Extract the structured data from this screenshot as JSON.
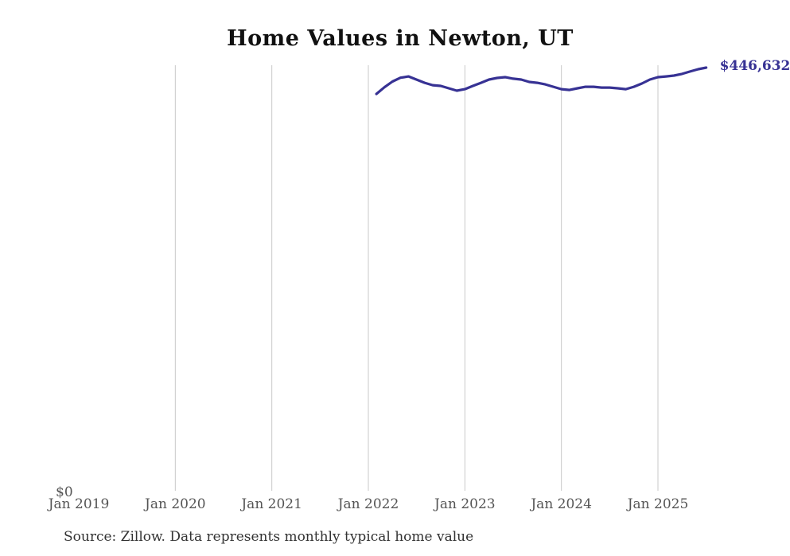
{
  "title": "Home Values in Newton, UT",
  "source_note": "Source: Zillow. Data represents monthly typical home value",
  "y_axis": {
    "zero_label": "$0"
  },
  "end_label": "$446,632",
  "colors": {
    "line": "#373294",
    "gridline": "#c9c9c9",
    "title": "#111111",
    "axis_label": "#555555",
    "source": "#333333",
    "background": "#ffffff"
  },
  "chart_data": {
    "type": "line",
    "title": "Home Values in Newton, UT",
    "xlabel": "",
    "ylabel": "",
    "x_tick_labels": [
      "Jan 2019",
      "Jan 2020",
      "Jan 2021",
      "Jan 2022",
      "Jan 2023",
      "Jan 2024",
      "Jan 2025"
    ],
    "y_tick_labels": [
      "$0"
    ],
    "ylim": [
      0,
      460000
    ],
    "grid": "vertical-only, no gridline at first tick",
    "legend": "none, end-of-line value label instead",
    "start_month_offset_from_first_tick": 37,
    "series": [
      {
        "name": "Monthly typical home value",
        "start_month": "Feb 2022",
        "end_month": "Jul 2025",
        "end_value_label": "$446,632",
        "values": [
          419000,
          426000,
          432000,
          436000,
          437400,
          434000,
          430700,
          428200,
          427400,
          424900,
          422400,
          424000,
          427400,
          430700,
          434100,
          435800,
          436600,
          435000,
          434100,
          431600,
          430700,
          429000,
          426500,
          424000,
          423200,
          424900,
          426500,
          426500,
          425700,
          425700,
          424900,
          424000,
          426500,
          429900,
          434100,
          436600,
          437400,
          438300,
          440000,
          442500,
          445000,
          446632
        ]
      }
    ]
  }
}
